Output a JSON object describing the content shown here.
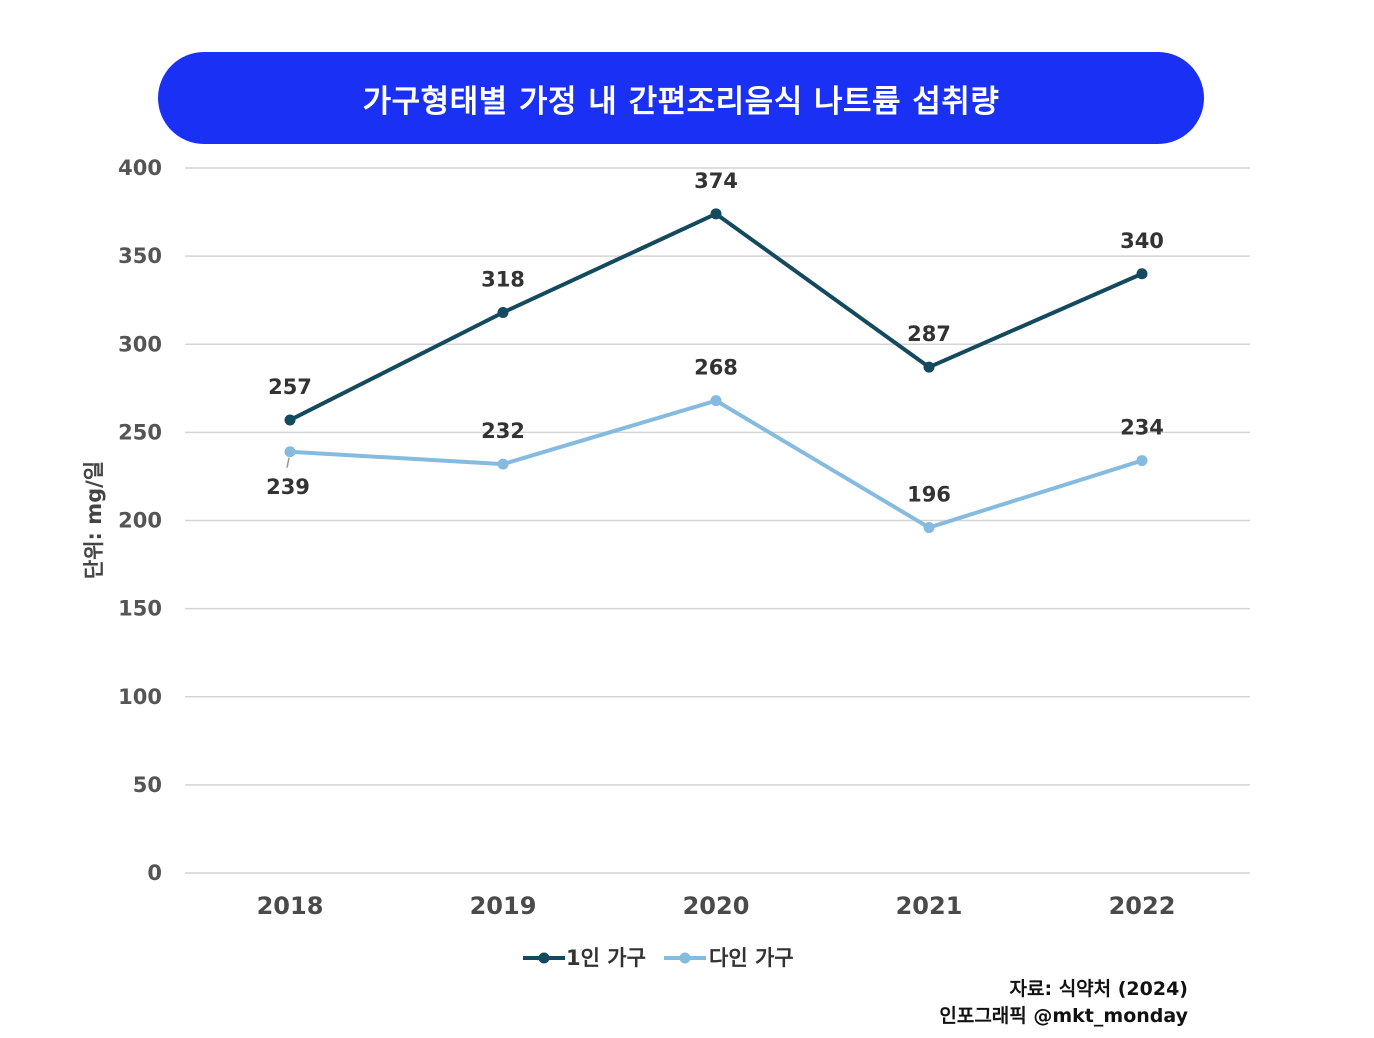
{
  "chart_data": {
    "type": "line",
    "title": "가구형태별 가정 내 간편조리음식 나트륨 섭취량",
    "ylabel": "단위: mg/일",
    "xlabel": "",
    "categories": [
      "2018",
      "2019",
      "2020",
      "2021",
      "2022"
    ],
    "ylim": [
      0,
      400
    ],
    "yticks": [
      "0",
      "50",
      "100",
      "150",
      "200",
      "250",
      "300",
      "350",
      "400"
    ],
    "grid": true,
    "legend_position": "bottom-center",
    "series": [
      {
        "name": "1인 가구",
        "color": "#144a5e",
        "values": [
          257,
          318,
          374,
          287,
          340
        ]
      },
      {
        "name": "다인 가구",
        "color": "#86bbe0",
        "values": [
          239,
          232,
          268,
          196,
          234
        ]
      }
    ]
  },
  "colors": {
    "title_background": "#1a30f5",
    "gridline": "#d4d4d4"
  },
  "source": {
    "line1": "자료: 식약처 (2024)",
    "line2": "인포그래픽 @mkt_monday"
  }
}
